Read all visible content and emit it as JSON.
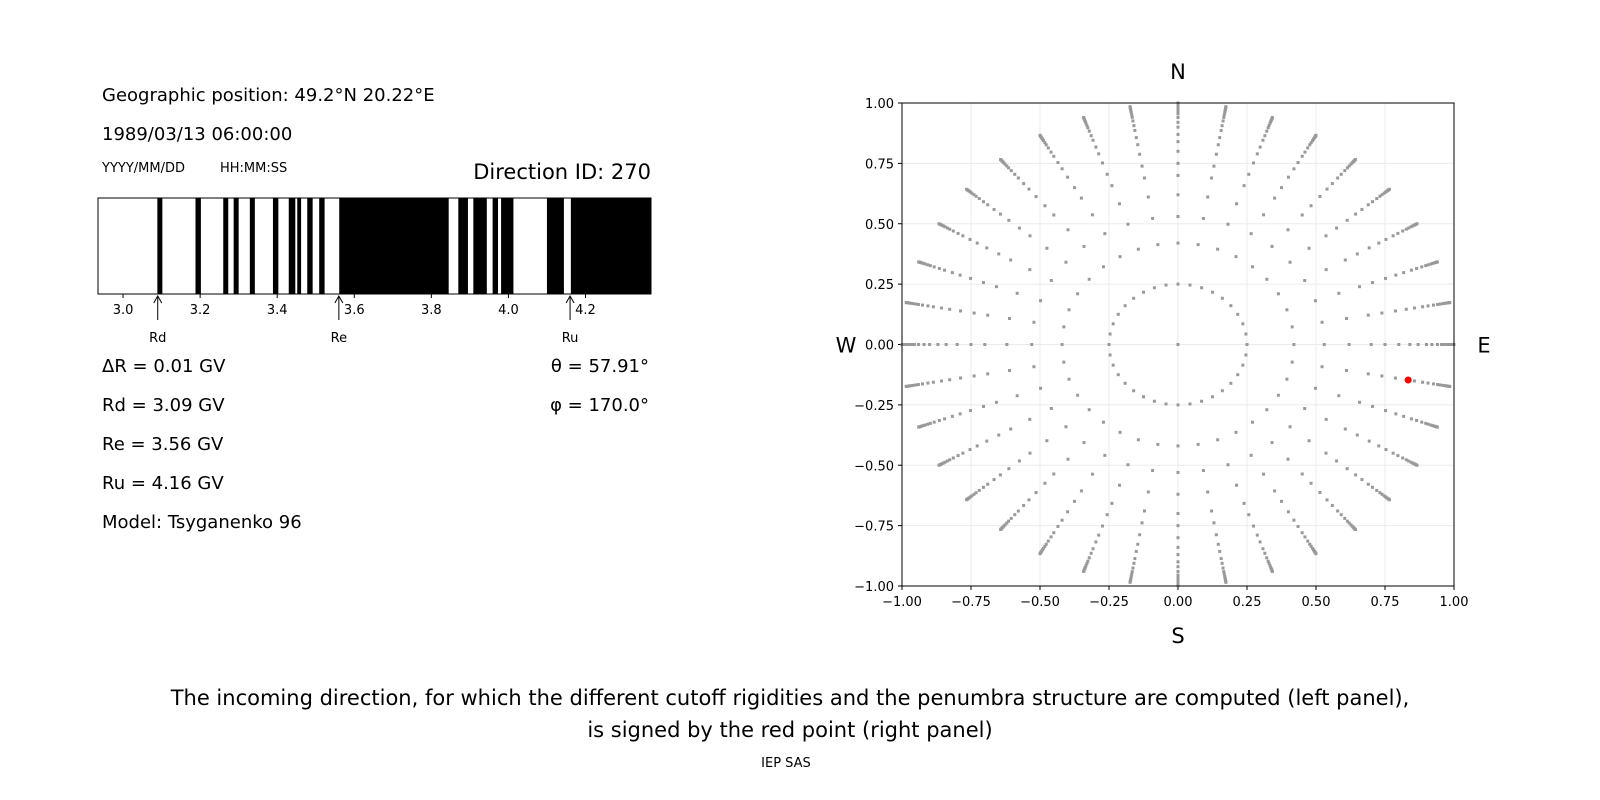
{
  "info": {
    "position": "Geographic position: 49.2°N 20.22°E",
    "datetime": "1989/03/13 06:00:00",
    "date_format": "YYYY/MM/DD",
    "time_format": "HH:MM:SS",
    "direction_id": "Direction ID: 270",
    "delta_r": "ΔR = 0.01 GV",
    "rd": "Rd = 3.09 GV",
    "re": "Re = 3.56 GV",
    "ru": "Ru = 4.16 GV",
    "model": "Model: Tsyganenko 96",
    "theta": "θ = 57.91°",
    "phi": "φ = 170.0°"
  },
  "caption": {
    "line1": "The incoming direction, for which the different cutoff rigidities and the penumbra structure are computed (left panel),",
    "line2": "is signed by the red point (right panel)",
    "credit": "IEP SAS"
  },
  "chart_data": [
    {
      "type": "penumbra-bar",
      "xlim": [
        2.935,
        4.37
      ],
      "xticks": [
        3.0,
        3.2,
        3.4,
        3.6,
        3.8,
        4.0,
        4.2
      ],
      "xtick_labels": [
        "3.0",
        "3.2",
        "3.4",
        "3.6",
        "3.8",
        "4.0",
        "4.2"
      ],
      "forbidden_intervals_GV": [
        [
          3.089,
          3.102
        ],
        [
          3.188,
          3.202
        ],
        [
          3.26,
          3.273
        ],
        [
          3.287,
          3.3
        ],
        [
          3.329,
          3.342
        ],
        [
          3.389,
          3.403
        ],
        [
          3.43,
          3.447
        ],
        [
          3.452,
          3.462
        ],
        [
          3.478,
          3.492
        ],
        [
          3.509,
          3.523
        ],
        [
          3.561,
          3.845
        ],
        [
          3.87,
          3.895
        ],
        [
          3.909,
          3.944
        ],
        [
          3.959,
          3.973
        ],
        [
          3.981,
          4.013
        ],
        [
          4.1,
          4.144
        ],
        [
          4.162,
          4.37
        ]
      ],
      "markers": [
        {
          "label": "Rd",
          "value": 3.09
        },
        {
          "label": "Re",
          "value": 3.56
        },
        {
          "label": "Ru",
          "value": 4.16
        }
      ],
      "colors": {
        "forbidden": "#000000",
        "allowed": "#ffffff"
      }
    },
    {
      "type": "scatter",
      "xlim": [
        -1,
        1
      ],
      "ylim": [
        -1,
        1
      ],
      "ticks": [
        -1.0,
        -0.75,
        -0.5,
        -0.25,
        0.0,
        0.25,
        0.5,
        0.75,
        1.0
      ],
      "tick_labels": [
        "−1.00",
        "−0.75",
        "−0.50",
        "−0.25",
        "0.00",
        "0.25",
        "0.50",
        "0.75",
        "1.00"
      ],
      "grid": true,
      "compass": {
        "top": "N",
        "bottom": "S",
        "left": "W",
        "right": "E"
      },
      "grid_points": {
        "azimuth_step_deg": 10,
        "radii": [
          0.25,
          0.42,
          0.53,
          0.62,
          0.7,
          0.75,
          0.8,
          0.84,
          0.87,
          0.9,
          0.92,
          0.94,
          0.955,
          0.965,
          0.975,
          0.982,
          0.988,
          0.993,
          0.997,
          1.0
        ],
        "center": [
          0,
          0
        ],
        "color": "#999999"
      },
      "highlight_point": {
        "x": 0.834,
        "y": -0.147,
        "color": "#ff0000"
      }
    }
  ]
}
